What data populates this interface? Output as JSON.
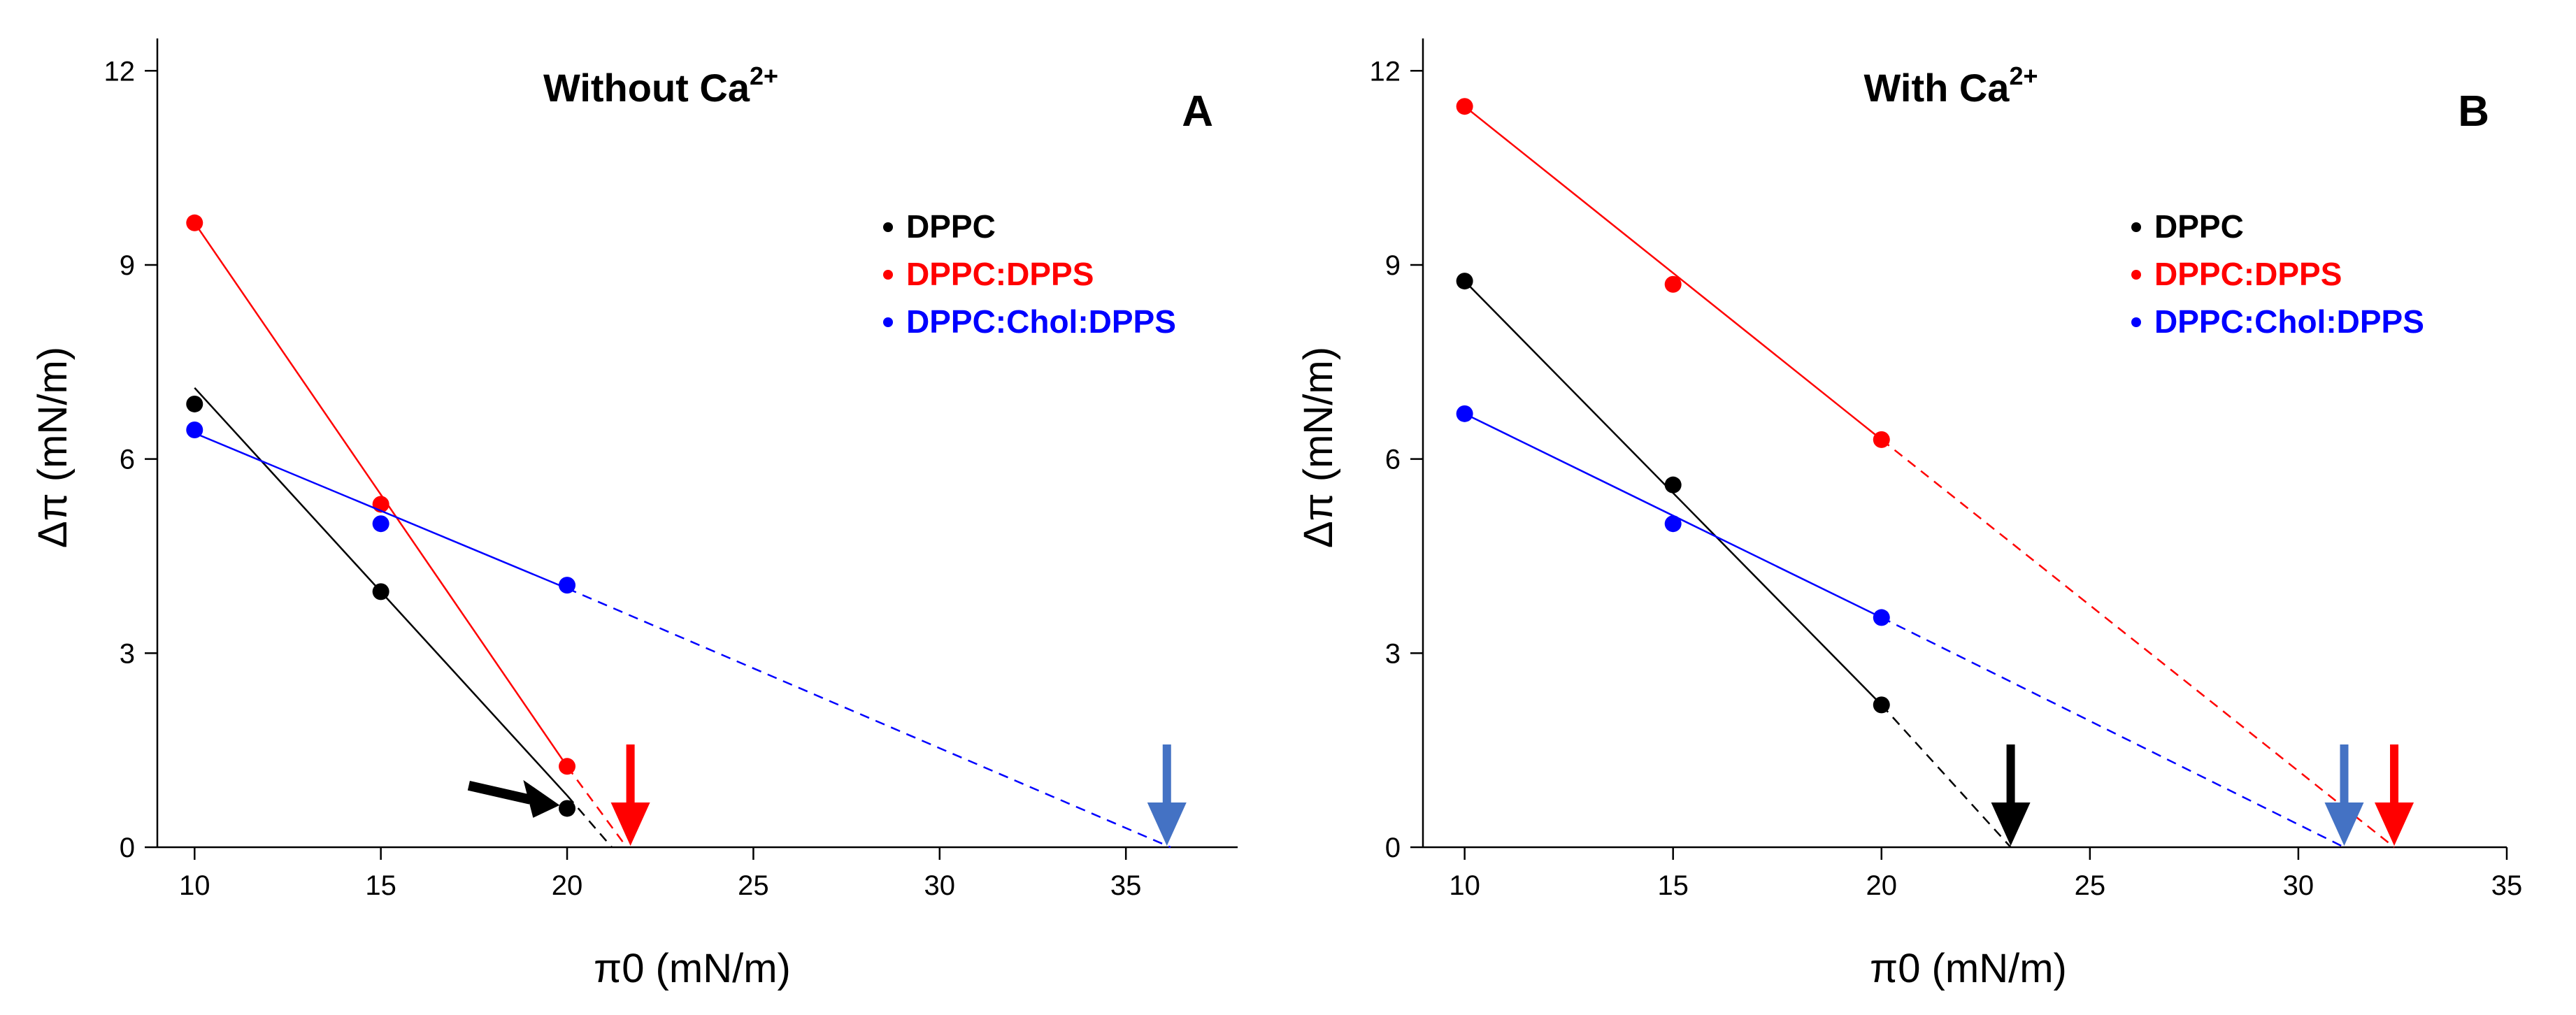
{
  "chart_data": [
    {
      "type": "scatter",
      "title": "Without Ca",
      "title_superscript": "2+",
      "panel_label": "A",
      "xlabel": "π0 (mN/m)",
      "ylabel": "Δπ (mN/m)",
      "xlim": [
        9,
        38
      ],
      "ylim": [
        0,
        12.5
      ],
      "xticks": [
        10,
        15,
        20,
        25,
        30,
        35
      ],
      "yticks": [
        0,
        3,
        6,
        9,
        12
      ],
      "legend_position": "top-right",
      "series": [
        {
          "name": "DPPC",
          "color": "#000000",
          "x": [
            10,
            15,
            20
          ],
          "y": [
            6.85,
            3.95,
            0.6
          ],
          "fit_solid": [
            [
              10,
              7.1
            ],
            [
              20,
              0.8
            ]
          ],
          "fit_dashed": [
            [
              20,
              0.8
            ],
            [
              21.2,
              0
            ]
          ]
        },
        {
          "name": "DPPC:DPPS",
          "color": "#ff0000",
          "x": [
            10,
            15,
            20
          ],
          "y": [
            9.65,
            5.3,
            1.25
          ],
          "fit_solid": [
            [
              10,
              9.65
            ],
            [
              20,
              1.25
            ]
          ],
          "fit_dashed": [
            [
              20,
              1.25
            ],
            [
              21.6,
              0
            ]
          ]
        },
        {
          "name": "DPPC:Chol:DPPS",
          "color": "#0000ff",
          "x": [
            10,
            15,
            20
          ],
          "y": [
            6.45,
            5.0,
            4.05
          ],
          "fit_solid": [
            [
              10,
              6.4
            ],
            [
              20,
              4.0
            ]
          ],
          "fit_dashed": [
            [
              20,
              4.0
            ],
            [
              36.2,
              0
            ]
          ]
        }
      ],
      "arrows": [
        {
          "color": "#ff0000",
          "direction": "down",
          "x": 21.7
        },
        {
          "color": "#4472c4",
          "direction": "down",
          "x": 36.1
        },
        {
          "color": "#000000",
          "direction": "right",
          "target": [
            19.8,
            0.65
          ]
        }
      ]
    },
    {
      "type": "scatter",
      "title": "With Ca",
      "title_superscript": "2+",
      "panel_label": "B",
      "xlabel": "π0 (mN/m)",
      "ylabel": "Δπ (mN/m)",
      "xlim": [
        9,
        35
      ],
      "ylim": [
        0,
        12.5
      ],
      "xticks": [
        10,
        15,
        20,
        25,
        30,
        35
      ],
      "yticks": [
        0,
        3,
        6,
        9,
        12
      ],
      "legend_position": "top-right",
      "series": [
        {
          "name": "DPPC",
          "color": "#000000",
          "x": [
            10,
            15,
            20
          ],
          "y": [
            8.75,
            5.6,
            2.2
          ],
          "fit_solid": [
            [
              10,
              8.75
            ],
            [
              20,
              2.2
            ]
          ],
          "fit_dashed": [
            [
              20,
              2.2
            ],
            [
              23.1,
              0
            ]
          ]
        },
        {
          "name": "DPPC:DPPS",
          "color": "#ff0000",
          "x": [
            10,
            15,
            20
          ],
          "y": [
            11.45,
            8.7,
            6.3
          ],
          "fit_solid": [
            [
              10,
              11.45
            ],
            [
              20,
              6.3
            ]
          ],
          "fit_dashed": [
            [
              20,
              6.3
            ],
            [
              32.3,
              0
            ]
          ]
        },
        {
          "name": "DPPC:Chol:DPPS",
          "color": "#0000ff",
          "x": [
            10,
            15,
            20
          ],
          "y": [
            6.7,
            5.0,
            3.55
          ],
          "fit_solid": [
            [
              10,
              6.7
            ],
            [
              20,
              3.55
            ]
          ],
          "fit_dashed": [
            [
              20,
              3.55
            ],
            [
              31.1,
              0
            ]
          ]
        }
      ],
      "arrows": [
        {
          "color": "#000000",
          "direction": "down",
          "x": 23.1
        },
        {
          "color": "#4472c4",
          "direction": "down",
          "x": 31.1
        },
        {
          "color": "#ff0000",
          "direction": "down",
          "x": 32.3
        }
      ]
    }
  ]
}
